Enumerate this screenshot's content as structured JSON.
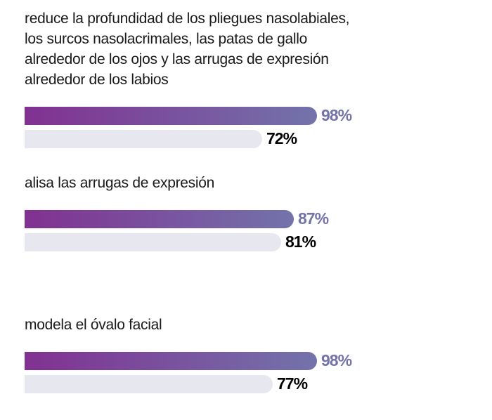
{
  "chart_data": {
    "type": "bar",
    "orientation": "horizontal",
    "title": "",
    "xlabel": "",
    "ylabel": "",
    "xlim": [
      0,
      100
    ],
    "grid": false,
    "colors": {
      "primary_start": "#813191",
      "primary_end": "#7373aa",
      "secondary": "#e7e7ef",
      "primary_label": "#7373aa",
      "secondary_label": "#000000"
    },
    "categories": [
      "reduce la profundidad de los pliegues nasolabiales, los surcos nasolacrimales, las patas de gallo alrededor de los ojos y las arrugas de expresión alrededor de los labios",
      "alisa las arrugas de expresión",
      "modela el óvalo facial"
    ],
    "series": [
      {
        "name": "primary",
        "values": [
          98,
          87,
          98
        ],
        "labels": [
          "98%",
          "87%",
          "98%"
        ]
      },
      {
        "name": "secondary",
        "values": [
          72,
          81,
          77
        ],
        "labels": [
          "72%",
          "81%",
          "77%"
        ]
      }
    ]
  }
}
